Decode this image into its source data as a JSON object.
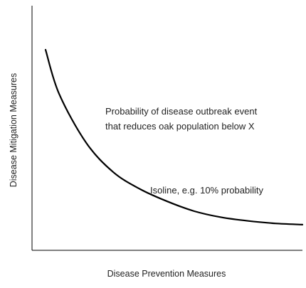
{
  "chart_data": {
    "type": "line",
    "title": "",
    "xlabel": "Disease Prevention Measures",
    "ylabel": "Disease Mitigation Measures",
    "grid": false,
    "legend": "none",
    "annotations": {
      "region_line1": "Probability of disease outbreak event",
      "region_line2": "that reduces oak population below X",
      "isoline_label": "Isoline, e.g. 10% probability"
    },
    "series": [
      {
        "color": "#000000",
        "x": [
          0.05,
          0.1,
          0.2,
          0.3,
          0.4,
          0.5,
          0.6,
          0.7,
          0.8,
          0.9,
          1.0
        ],
        "y": [
          0.82,
          0.64,
          0.44,
          0.32,
          0.25,
          0.2,
          0.16,
          0.135,
          0.12,
          0.11,
          0.105
        ]
      }
    ]
  }
}
